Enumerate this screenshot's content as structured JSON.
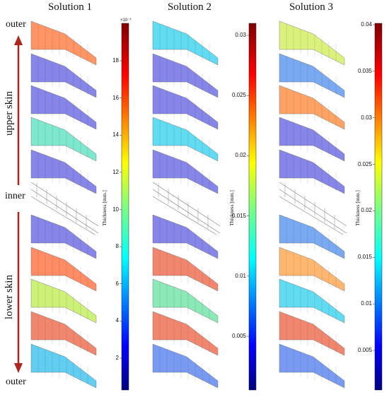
{
  "solutions": [
    {
      "title": "Solution 1",
      "panels": [
        "#ff8a55",
        "#7a78e6",
        "#7a78e6",
        "#6fe6c8",
        "#7a78e6",
        "mesh",
        "#7a78e6",
        "#ff8055",
        "#c8f06a",
        "#f07a60",
        "#4fc8f0"
      ],
      "colorbar": {
        "label": "Thickness [mm.]",
        "exponent": "×10⁻³",
        "ticks": [
          "18",
          "16",
          "14",
          "12",
          "10",
          "8",
          "6",
          "4",
          "2"
        ]
      }
    },
    {
      "title": "Solution 2",
      "panels": [
        "#4fd8f0",
        "#7a78e6",
        "#7a78e6",
        "#4fd8f0",
        "#7a78e6",
        "mesh",
        "#7a78e6",
        "#f07a60",
        "#7fe6b0",
        "#f07a60",
        "#6a90f0"
      ],
      "colorbar": {
        "label": "Thickness [mm.]",
        "exponent": "",
        "ticks": [
          "0.03",
          "0.025",
          "0.02",
          "0.015",
          "0.01",
          "0.005"
        ]
      }
    },
    {
      "title": "Solution 3",
      "panels": [
        "#d8f070",
        "#6aa0f0",
        "#ff9a55",
        "#7a78e6",
        "#7a78e6",
        "mesh",
        "#6aa0f0",
        "#ffb060",
        "#4fd8f0",
        "#f07a60",
        "#6a90f0"
      ],
      "colorbar": {
        "label": "Thickness [mm.]",
        "exponent": "",
        "ticks": [
          "0.04",
          "0.035",
          "0.03",
          "0.025",
          "0.02",
          "0.015",
          "0.01",
          "0.005"
        ]
      }
    }
  ],
  "labels": {
    "outer_top": "outer",
    "upper_skin": "upper skin",
    "inner": "inner",
    "lower_skin": "lower skin",
    "outer_bottom": "outer"
  },
  "arrow_color": "#b0261e"
}
